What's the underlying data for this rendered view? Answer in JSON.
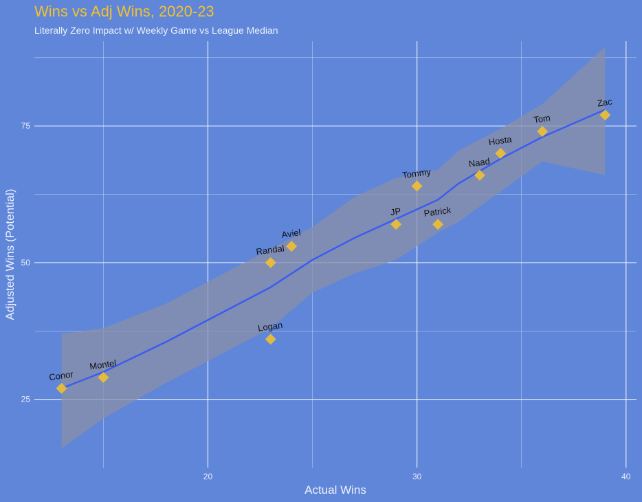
{
  "chart_data": {
    "type": "scatter",
    "title": "Wins vs Adj Wins, 2020-23",
    "subtitle": "Literally Zero Impact w/ Weekly Game vs League Median",
    "xlabel": "Actual Wins",
    "ylabel": "Adjusted Wins (Potential)",
    "xlim": [
      11.7,
      40.5
    ],
    "ylim": [
      12.5,
      90.5
    ],
    "xticks": [
      20,
      30,
      40
    ],
    "yticks": [
      25,
      50,
      75
    ],
    "x_minor": [
      15,
      25,
      35
    ],
    "y_minor": [
      37.5,
      62.5,
      87.5
    ],
    "grid": true,
    "legend": "none",
    "colors": {
      "background": "#5f86d9",
      "title": "#f2c12e",
      "points": "#f2c12e",
      "trend": "#3a5cf0",
      "confidence_band": "#8a8fa8",
      "grid": "#ffffff"
    },
    "points": [
      {
        "label": "Conor",
        "x": 13,
        "y": 27
      },
      {
        "label": "Montel",
        "x": 15,
        "y": 29
      },
      {
        "label": "Randal",
        "x": 23,
        "y": 50
      },
      {
        "label": "Aviel",
        "x": 24,
        "y": 53
      },
      {
        "label": "Logan",
        "x": 23,
        "y": 36
      },
      {
        "label": "JP",
        "x": 29,
        "y": 57
      },
      {
        "label": "Tommy",
        "x": 30,
        "y": 64
      },
      {
        "label": "Patrick",
        "x": 31,
        "y": 57
      },
      {
        "label": "Naad",
        "x": 33,
        "y": 66
      },
      {
        "label": "Hosta",
        "x": 34,
        "y": 70
      },
      {
        "label": "Tom",
        "x": 36,
        "y": 74
      },
      {
        "label": "Zac",
        "x": 39,
        "y": 77
      }
    ],
    "trend": {
      "method": "loess",
      "x": [
        13,
        15,
        18,
        20,
        23,
        25,
        27,
        29,
        31,
        32,
        34,
        36,
        39
      ],
      "y": [
        27,
        30,
        35.5,
        39.5,
        45.5,
        50.5,
        54.5,
        58,
        61.5,
        64.5,
        69,
        73,
        78
      ],
      "lower": [
        16,
        21.5,
        28,
        32,
        38,
        44.5,
        48,
        50.5,
        55.5,
        57.5,
        63,
        68.5,
        66
      ],
      "upper": [
        37,
        38,
        42.5,
        46.5,
        52.5,
        56.5,
        62,
        65.5,
        67,
        70.5,
        74.5,
        79,
        89.5
      ]
    }
  }
}
